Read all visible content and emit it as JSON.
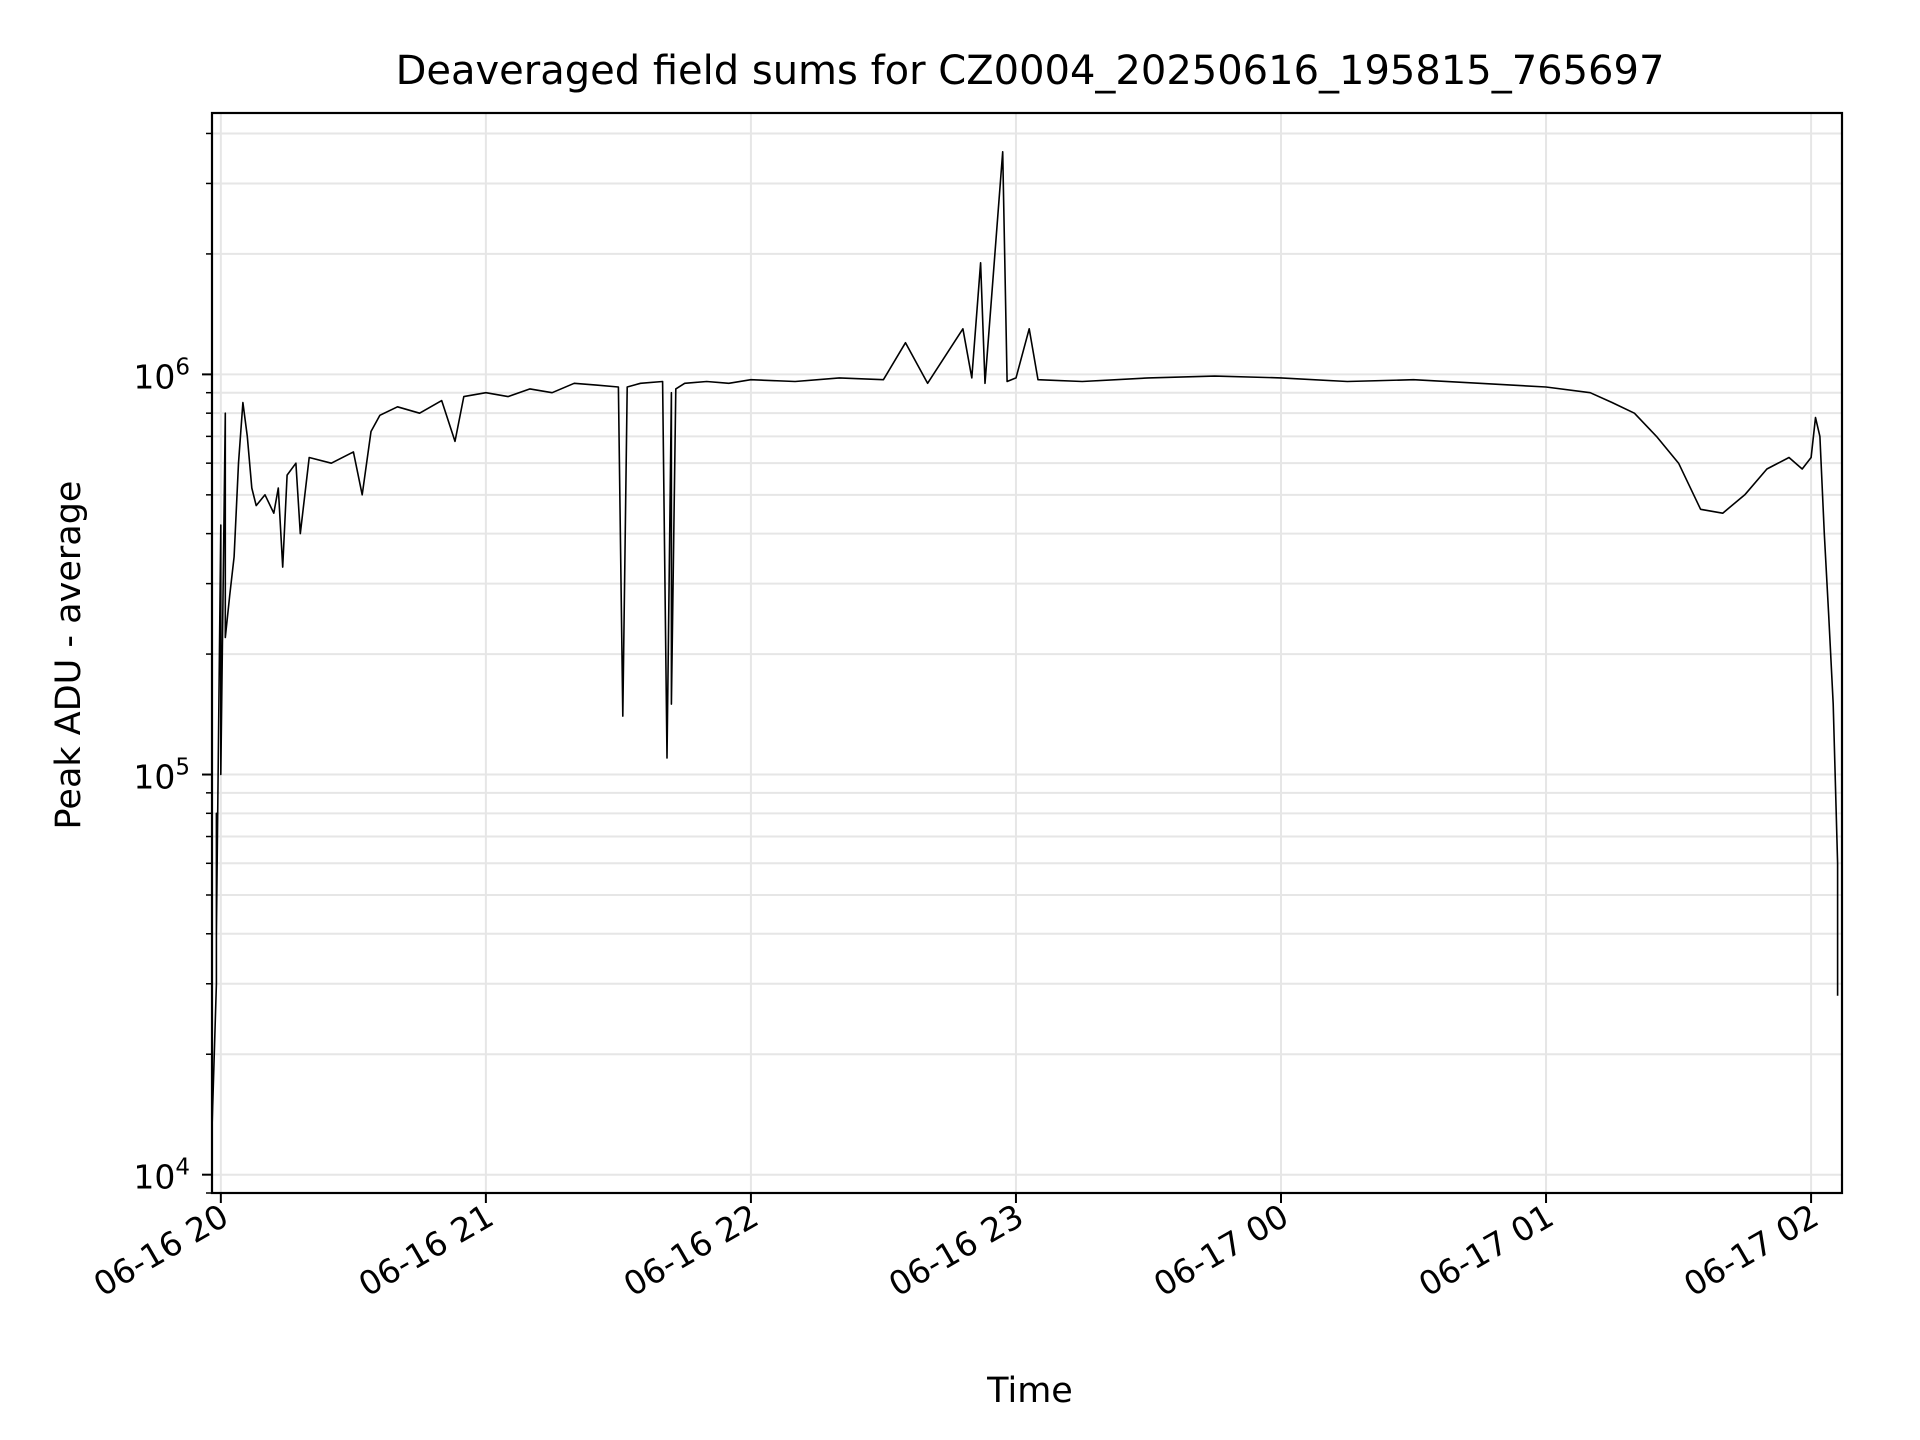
{
  "chart_data": {
    "type": "line",
    "title": "Deaveraged field sums for CZ0004_20250616_195815_765697",
    "xlabel": "Time",
    "ylabel": "Peak ADU - average",
    "y_scale": "log",
    "ylim": [
      9000,
      4500000
    ],
    "xlim": [
      "2025-06-16 19:58",
      "2025-06-17 02:07"
    ],
    "grid": true,
    "line_color": "#000000",
    "grid_color": "#e6e6e6",
    "x_ticks": [
      {
        "t": "2025-06-16 20:00",
        "label": "06-16 20"
      },
      {
        "t": "2025-06-16 21:00",
        "label": "06-16 21"
      },
      {
        "t": "2025-06-16 22:00",
        "label": "06-16 22"
      },
      {
        "t": "2025-06-16 23:00",
        "label": "06-16 23"
      },
      {
        "t": "2025-06-17 00:00",
        "label": "06-17 00"
      },
      {
        "t": "2025-06-17 01:00",
        "label": "06-17 01"
      },
      {
        "t": "2025-06-17 02:00",
        "label": "06-17 02"
      }
    ],
    "y_ticks": [
      {
        "value": 10000,
        "base": "10",
        "exp": "4"
      },
      {
        "value": 100000,
        "base": "10",
        "exp": "5"
      },
      {
        "value": 1000000,
        "base": "10",
        "exp": "6"
      }
    ],
    "series": [
      {
        "points": [
          [
            "2025-06-16 19:58",
            13000
          ],
          [
            "2025-06-16 19:59",
            30000
          ],
          [
            "2025-06-16 19:59",
            80000
          ],
          [
            "2025-06-16 19:59",
            40000
          ],
          [
            "2025-06-16 20:00",
            420000
          ],
          [
            "2025-06-16 20:00",
            100000
          ],
          [
            "2025-06-16 20:01",
            800000
          ],
          [
            "2025-06-16 20:01",
            220000
          ],
          [
            "2025-06-16 20:02",
            280000
          ],
          [
            "2025-06-16 20:03",
            350000
          ],
          [
            "2025-06-16 20:04",
            600000
          ],
          [
            "2025-06-16 20:05",
            850000
          ],
          [
            "2025-06-16 20:06",
            700000
          ],
          [
            "2025-06-16 20:07",
            520000
          ],
          [
            "2025-06-16 20:08",
            470000
          ],
          [
            "2025-06-16 20:10",
            500000
          ],
          [
            "2025-06-16 20:12",
            450000
          ],
          [
            "2025-06-16 20:13",
            520000
          ],
          [
            "2025-06-16 20:14",
            330000
          ],
          [
            "2025-06-16 20:15",
            560000
          ],
          [
            "2025-06-16 20:17",
            600000
          ],
          [
            "2025-06-16 20:18",
            400000
          ],
          [
            "2025-06-16 20:20",
            620000
          ],
          [
            "2025-06-16 20:25",
            600000
          ],
          [
            "2025-06-16 20:30",
            640000
          ],
          [
            "2025-06-16 20:32",
            500000
          ],
          [
            "2025-06-16 20:34",
            720000
          ],
          [
            "2025-06-16 20:36",
            790000
          ],
          [
            "2025-06-16 20:40",
            830000
          ],
          [
            "2025-06-16 20:45",
            800000
          ],
          [
            "2025-06-16 20:50",
            860000
          ],
          [
            "2025-06-16 20:53",
            680000
          ],
          [
            "2025-06-16 20:55",
            880000
          ],
          [
            "2025-06-16 21:00",
            900000
          ],
          [
            "2025-06-16 21:05",
            880000
          ],
          [
            "2025-06-16 21:10",
            920000
          ],
          [
            "2025-06-16 21:15",
            900000
          ],
          [
            "2025-06-16 21:20",
            950000
          ],
          [
            "2025-06-16 21:25",
            940000
          ],
          [
            "2025-06-16 21:30",
            930000
          ],
          [
            "2025-06-16 21:31",
            140000
          ],
          [
            "2025-06-16 21:32",
            930000
          ],
          [
            "2025-06-16 21:35",
            950000
          ],
          [
            "2025-06-16 21:40",
            960000
          ],
          [
            "2025-06-16 21:41",
            110000
          ],
          [
            "2025-06-16 21:42",
            900000
          ],
          [
            "2025-06-16 21:42",
            150000
          ],
          [
            "2025-06-16 21:43",
            920000
          ],
          [
            "2025-06-16 21:45",
            950000
          ],
          [
            "2025-06-16 21:50",
            960000
          ],
          [
            "2025-06-16 21:55",
            950000
          ],
          [
            "2025-06-16 22:00",
            970000
          ],
          [
            "2025-06-16 22:10",
            960000
          ],
          [
            "2025-06-16 22:20",
            980000
          ],
          [
            "2025-06-16 22:30",
            970000
          ],
          [
            "2025-06-16 22:35",
            1200000
          ],
          [
            "2025-06-16 22:40",
            950000
          ],
          [
            "2025-06-16 22:48",
            1300000
          ],
          [
            "2025-06-16 22:50",
            980000
          ],
          [
            "2025-06-16 22:52",
            1900000
          ],
          [
            "2025-06-16 22:53",
            950000
          ],
          [
            "2025-06-16 22:57",
            3600000
          ],
          [
            "2025-06-16 22:58",
            960000
          ],
          [
            "2025-06-16 23:00",
            980000
          ],
          [
            "2025-06-16 23:03",
            1300000
          ],
          [
            "2025-06-16 23:05",
            970000
          ],
          [
            "2025-06-16 23:15",
            960000
          ],
          [
            "2025-06-16 23:30",
            980000
          ],
          [
            "2025-06-16 23:45",
            990000
          ],
          [
            "2025-06-17 00:00",
            980000
          ],
          [
            "2025-06-17 00:15",
            960000
          ],
          [
            "2025-06-17 00:30",
            970000
          ],
          [
            "2025-06-17 00:45",
            950000
          ],
          [
            "2025-06-17 01:00",
            930000
          ],
          [
            "2025-06-17 01:10",
            900000
          ],
          [
            "2025-06-17 01:15",
            850000
          ],
          [
            "2025-06-17 01:20",
            800000
          ],
          [
            "2025-06-17 01:25",
            700000
          ],
          [
            "2025-06-17 01:30",
            600000
          ],
          [
            "2025-06-17 01:35",
            460000
          ],
          [
            "2025-06-17 01:40",
            450000
          ],
          [
            "2025-06-17 01:45",
            500000
          ],
          [
            "2025-06-17 01:50",
            580000
          ],
          [
            "2025-06-17 01:55",
            620000
          ],
          [
            "2025-06-17 01:58",
            580000
          ],
          [
            "2025-06-17 02:00",
            620000
          ],
          [
            "2025-06-17 02:01",
            780000
          ],
          [
            "2025-06-17 02:02",
            700000
          ],
          [
            "2025-06-17 02:03",
            400000
          ],
          [
            "2025-06-17 02:04",
            250000
          ],
          [
            "2025-06-17 02:05",
            150000
          ],
          [
            "2025-06-17 02:06",
            60000
          ],
          [
            "2025-06-17 02:06",
            28000
          ]
        ]
      }
    ]
  }
}
